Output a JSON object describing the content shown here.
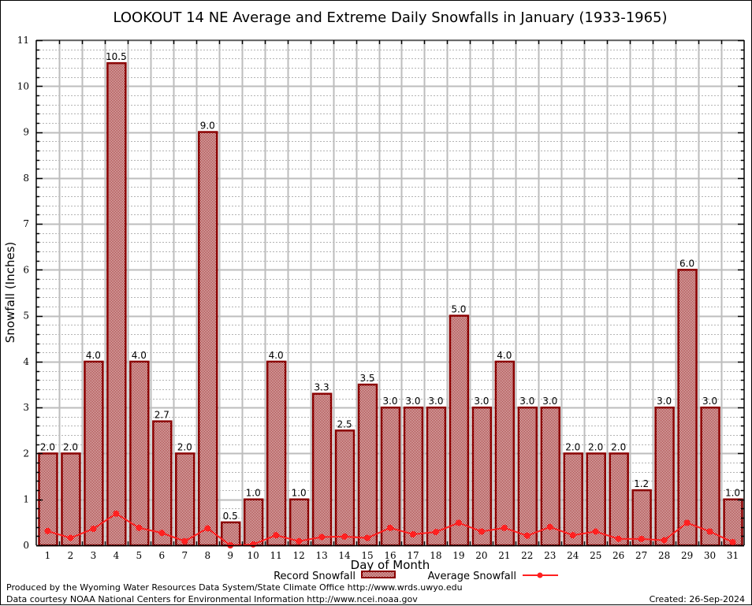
{
  "chart_data": {
    "type": "bar",
    "title": "LOOKOUT 14 NE Average and Extreme Daily Snowfalls in January (1933-1965)",
    "xlabel": "Day of Month",
    "ylabel": "Snowfall (Inches)",
    "ylim": [
      0,
      11
    ],
    "yticks": [
      0,
      1,
      2,
      3,
      4,
      5,
      6,
      7,
      8,
      9,
      10,
      11
    ],
    "grid": true,
    "legend_position": "bottom-center",
    "categories": [
      "1",
      "2",
      "3",
      "4",
      "5",
      "6",
      "7",
      "8",
      "9",
      "10",
      "11",
      "12",
      "13",
      "14",
      "15",
      "16",
      "17",
      "18",
      "19",
      "20",
      "21",
      "22",
      "23",
      "24",
      "25",
      "26",
      "27",
      "28",
      "29",
      "30",
      "31"
    ],
    "series": [
      {
        "name": "Record Snowfall",
        "type": "bar",
        "color": "#8b0000",
        "values": [
          2.0,
          2.0,
          4.0,
          10.5,
          4.0,
          2.7,
          2.0,
          9.0,
          0.5,
          1.0,
          4.0,
          1.0,
          3.3,
          2.5,
          3.5,
          3.0,
          3.0,
          3.0,
          5.0,
          3.0,
          4.0,
          3.0,
          3.0,
          2.0,
          2.0,
          2.0,
          1.2,
          3.0,
          6.0,
          3.0,
          1.0
        ],
        "labels": [
          "2.0",
          "2.0",
          "4.0",
          "10.5",
          "4.0",
          "2.7",
          "2.0",
          "9.0",
          "0.5",
          "1.0",
          "4.0",
          "1.0",
          "3.3",
          "2.5",
          "3.5",
          "3.0",
          "3.0",
          "3.0",
          "5.0",
          "3.0",
          "4.0",
          "3.0",
          "3.0",
          "2.0",
          "2.0",
          "2.0",
          "1.2",
          "3.0",
          "6.0",
          "3.0",
          "1.0"
        ]
      },
      {
        "name": "Average Snowfall",
        "type": "line",
        "color": "#ff2020",
        "values": [
          0.31,
          0.16,
          0.36,
          0.69,
          0.38,
          0.27,
          0.09,
          0.37,
          0.0,
          0.02,
          0.22,
          0.09,
          0.18,
          0.19,
          0.16,
          0.38,
          0.24,
          0.29,
          0.49,
          0.3,
          0.38,
          0.21,
          0.4,
          0.22,
          0.3,
          0.14,
          0.14,
          0.11,
          0.49,
          0.3,
          0.07
        ]
      }
    ]
  },
  "footer": {
    "produced_by": "Produced by the Wyoming Water Resources Data System/State Climate Office http://www.wrds.uwyo.edu",
    "data_courtesy": "Data courtesy NOAA National Centers for Environmental Information http://www.ncei.noaa.gov",
    "created": "Created: 26-Sep-2024"
  }
}
